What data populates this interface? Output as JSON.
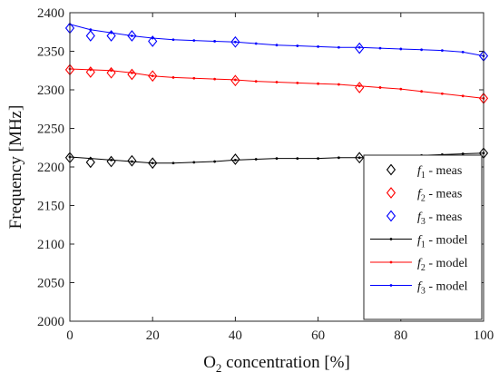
{
  "chart_data": {
    "type": "line",
    "xlabel": {
      "main": "O",
      "sub": "2",
      "rest": " concentration [%]"
    },
    "ylabel": "Frequency [MHz]",
    "xlim": [
      0,
      100
    ],
    "ylim": [
      2000,
      2400
    ],
    "xticks": [
      0,
      20,
      40,
      60,
      80,
      100
    ],
    "yticks": [
      2000,
      2050,
      2100,
      2150,
      2200,
      2250,
      2300,
      2350,
      2400
    ],
    "grid": false,
    "legend_position": "bottom-right",
    "series": [
      {
        "name": {
          "main": "f",
          "sub": "1",
          "rest": " - meas"
        },
        "kind": "meas",
        "color": "#000000",
        "x": [
          0,
          5,
          10,
          15,
          20,
          40,
          70,
          100
        ],
        "y": [
          2212,
          2206,
          2207,
          2208,
          2205,
          2210,
          2212,
          2218
        ]
      },
      {
        "name": {
          "main": "f",
          "sub": "2",
          "rest": " - meas"
        },
        "kind": "meas",
        "color": "#ff0000",
        "x": [
          0,
          5,
          10,
          15,
          20,
          40,
          70,
          100
        ],
        "y": [
          2326,
          2323,
          2322,
          2320,
          2318,
          2312,
          2303,
          2289
        ]
      },
      {
        "name": {
          "main": "f",
          "sub": "3",
          "rest": " - meas"
        },
        "kind": "meas",
        "color": "#0000ff",
        "x": [
          0,
          5,
          10,
          15,
          20,
          40,
          70,
          100
        ],
        "y": [
          2380,
          2370,
          2370,
          2370,
          2363,
          2362,
          2354,
          2344
        ]
      },
      {
        "name": {
          "main": "f",
          "sub": "1",
          "rest": " - model"
        },
        "kind": "model",
        "color": "#000000",
        "x": [
          0,
          5,
          10,
          15,
          20,
          25,
          30,
          35,
          40,
          45,
          50,
          55,
          60,
          65,
          70,
          75,
          80,
          85,
          90,
          95,
          100
        ],
        "y": [
          2213,
          2211,
          2209,
          2207,
          2205,
          2205,
          2206,
          2207,
          2209,
          2210,
          2211,
          2211,
          2211,
          2212,
          2212,
          2212,
          2213,
          2215,
          2216,
          2217,
          2218
        ]
      },
      {
        "name": {
          "main": "f",
          "sub": "2",
          "rest": " - model"
        },
        "kind": "model",
        "color": "#ff0000",
        "x": [
          0,
          5,
          10,
          15,
          20,
          25,
          30,
          35,
          40,
          45,
          50,
          55,
          60,
          65,
          70,
          75,
          80,
          85,
          90,
          95,
          100
        ],
        "y": [
          2327,
          2326,
          2325,
          2322,
          2318,
          2316,
          2315,
          2314,
          2313,
          2311,
          2310,
          2309,
          2308,
          2307,
          2305,
          2303,
          2301,
          2298,
          2295,
          2292,
          2289
        ]
      },
      {
        "name": {
          "main": "f",
          "sub": "3",
          "rest": " - model"
        },
        "kind": "model",
        "color": "#0000ff",
        "x": [
          0,
          5,
          10,
          15,
          20,
          25,
          30,
          35,
          40,
          45,
          50,
          55,
          60,
          65,
          70,
          75,
          80,
          85,
          90,
          95,
          100
        ],
        "y": [
          2385,
          2378,
          2374,
          2370,
          2367,
          2365,
          2364,
          2363,
          2362,
          2360,
          2358,
          2357,
          2356,
          2355,
          2355,
          2354,
          2353,
          2352,
          2351,
          2349,
          2344
        ]
      }
    ]
  }
}
